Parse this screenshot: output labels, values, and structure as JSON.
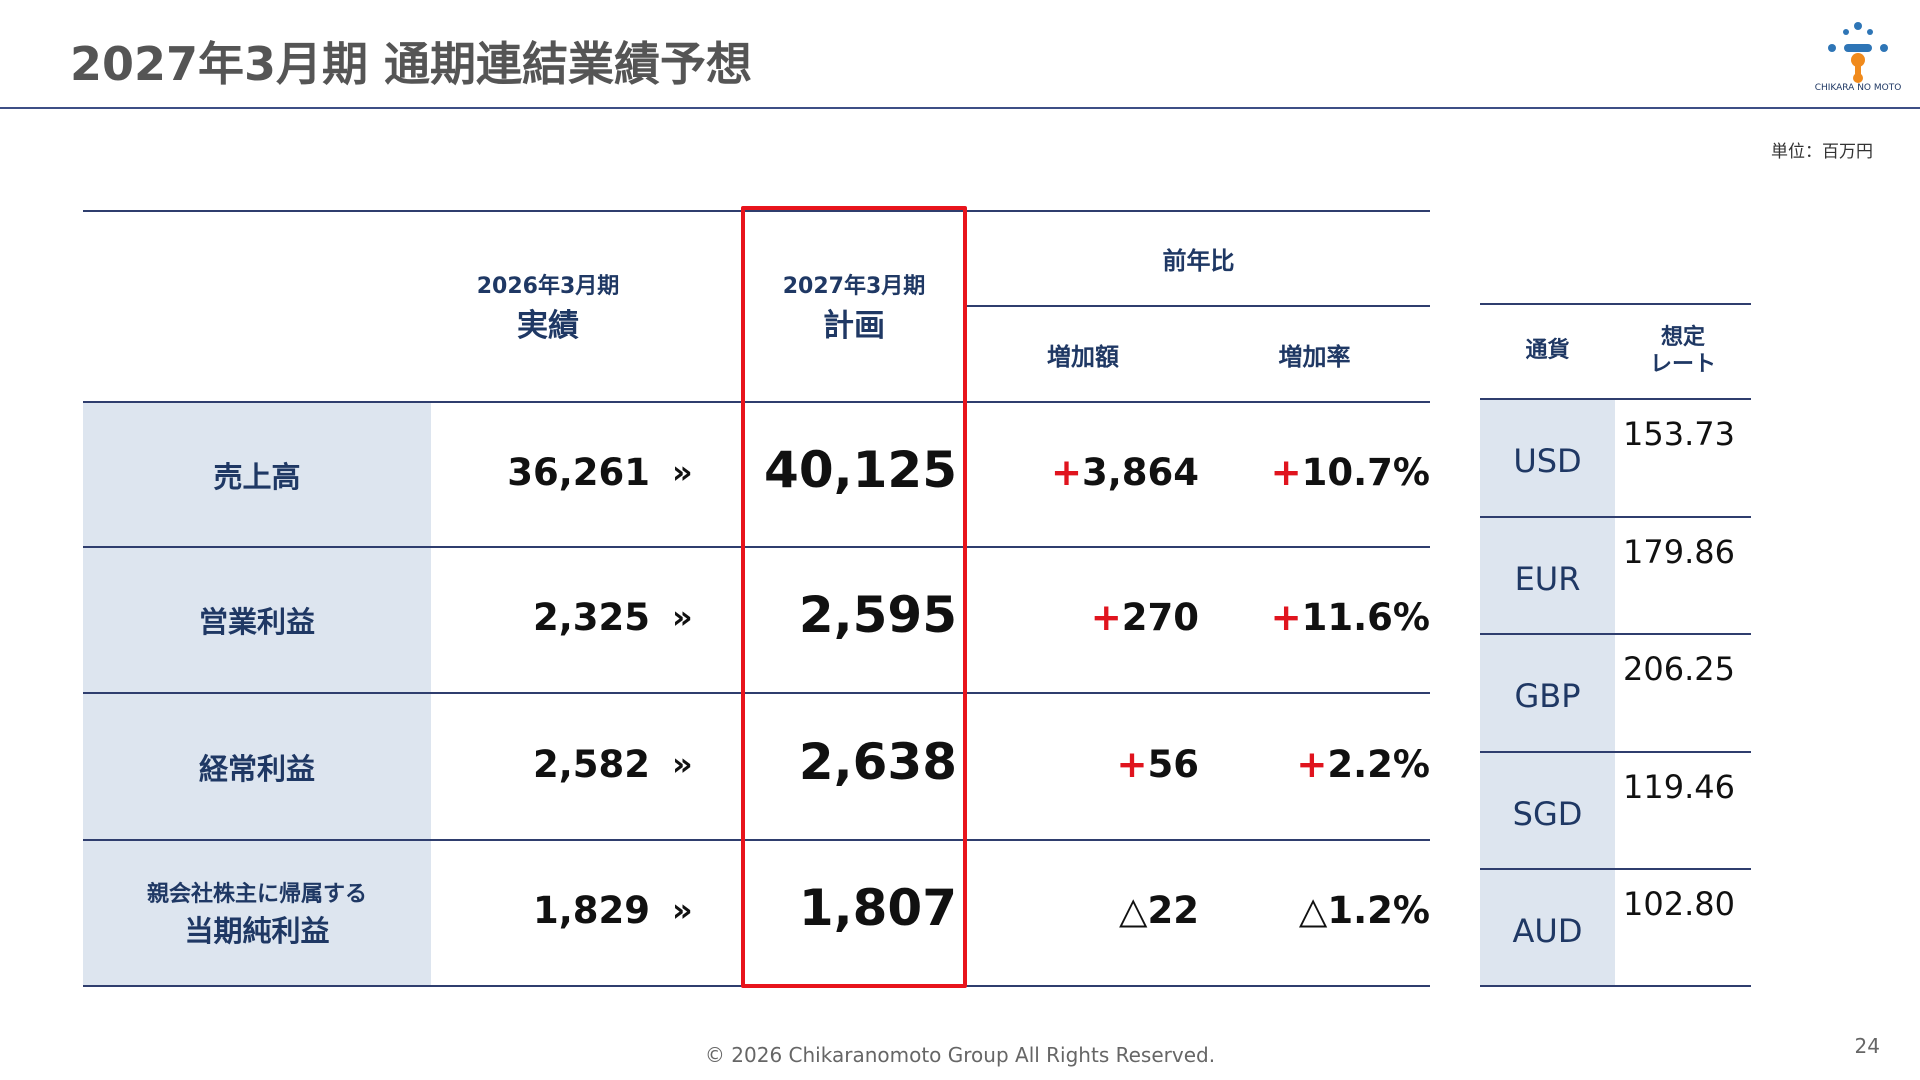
{
  "header": {
    "title": "2027年3月期 通期連結業績予想",
    "unit": "単位：百万円",
    "logo_text": "CHIKARA NO MOTO"
  },
  "table": {
    "columns": {
      "actual": [
        "2026年3月期",
        "実績"
      ],
      "plan": [
        "2027年3月期",
        "計画"
      ],
      "yoy": "前年比",
      "increase": "増加額",
      "rate": "増加率"
    },
    "arrow": "»",
    "rows": [
      {
        "label": [
          "売上高"
        ],
        "actual": "36,261",
        "plan": "40,125",
        "increase": {
          "sign": "+",
          "value": "3,864"
        },
        "rate": {
          "sign": "+",
          "value": "10.7%"
        }
      },
      {
        "label": [
          "営業利益"
        ],
        "actual": "2,325",
        "plan": "2,595",
        "increase": {
          "sign": "+",
          "value": "270"
        },
        "rate": {
          "sign": "+",
          "value": "11.6%"
        }
      },
      {
        "label": [
          "経常利益"
        ],
        "actual": "2,582",
        "plan": "2,638",
        "increase": {
          "sign": "+",
          "value": "56"
        },
        "rate": {
          "sign": "+",
          "value": "2.2%"
        }
      },
      {
        "label": [
          "親会社株主に帰属する",
          "当期純利益"
        ],
        "actual": "1,829",
        "plan": "1,807",
        "increase": {
          "sign": "△",
          "value": "22"
        },
        "rate": {
          "sign": "△",
          "value": "1.2%"
        }
      }
    ]
  },
  "currency": {
    "headers": [
      [
        "通貨"
      ],
      [
        "想定",
        "レート"
      ]
    ],
    "rows": [
      [
        "USD",
        "153.73"
      ],
      [
        "EUR",
        "179.86"
      ],
      [
        "GBP",
        "206.25"
      ],
      [
        "SGD",
        "119.46"
      ],
      [
        "AUD",
        "102.80"
      ]
    ]
  },
  "footer": {
    "copyright": "© 2026 Chikaranomoto Group All Rights Reserved.",
    "page": "24"
  }
}
